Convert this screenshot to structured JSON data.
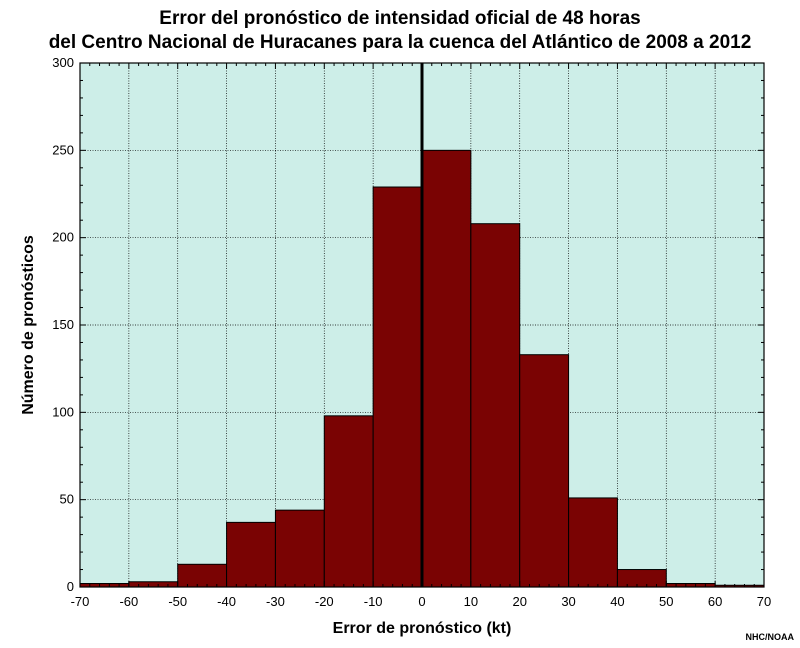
{
  "header": {
    "title_line1": "Error del pronóstico de intensidad oficial de 48 horas",
    "title_line2": "del Centro Nacional de Huracanes para la cuenca del Atlántico de 2008 a 2012"
  },
  "credit": "NHC/NOAA",
  "colors": {
    "plot_bg": "#cdeee8",
    "bar_fill": "#7a0303",
    "bar_edge": "#000000"
  },
  "chart_data": {
    "type": "bar",
    "title": "Error del pronóstico de intensidad oficial de 48 horas del Centro Nacional de Huracanes para la cuenca del Atlántico de 2008 a 2012",
    "xlabel": "Error de pronóstico (kt)",
    "ylabel": "Número de pronósticos",
    "xlim": [
      -70,
      70
    ],
    "ylim": [
      0,
      300
    ],
    "xticks": [
      -70,
      -60,
      -50,
      -40,
      -30,
      -20,
      -10,
      0,
      10,
      20,
      30,
      40,
      50,
      60,
      70
    ],
    "yticks": [
      0,
      50,
      100,
      150,
      200,
      250,
      300
    ],
    "grid": true,
    "bins": [
      {
        "x0": -70,
        "x1": -60,
        "value": 2
      },
      {
        "x0": -60,
        "x1": -50,
        "value": 3
      },
      {
        "x0": -50,
        "x1": -40,
        "value": 13
      },
      {
        "x0": -40,
        "x1": -30,
        "value": 37
      },
      {
        "x0": -30,
        "x1": -20,
        "value": 44
      },
      {
        "x0": -20,
        "x1": -10,
        "value": 98
      },
      {
        "x0": -10,
        "x1": 0,
        "value": 229
      },
      {
        "x0": 0,
        "x1": 10,
        "value": 250
      },
      {
        "x0": 10,
        "x1": 20,
        "value": 208
      },
      {
        "x0": 20,
        "x1": 30,
        "value": 133
      },
      {
        "x0": 30,
        "x1": 40,
        "value": 51
      },
      {
        "x0": 40,
        "x1": 50,
        "value": 10
      },
      {
        "x0": 50,
        "x1": 60,
        "value": 2
      },
      {
        "x0": 60,
        "x1": 70,
        "value": 1
      }
    ]
  }
}
